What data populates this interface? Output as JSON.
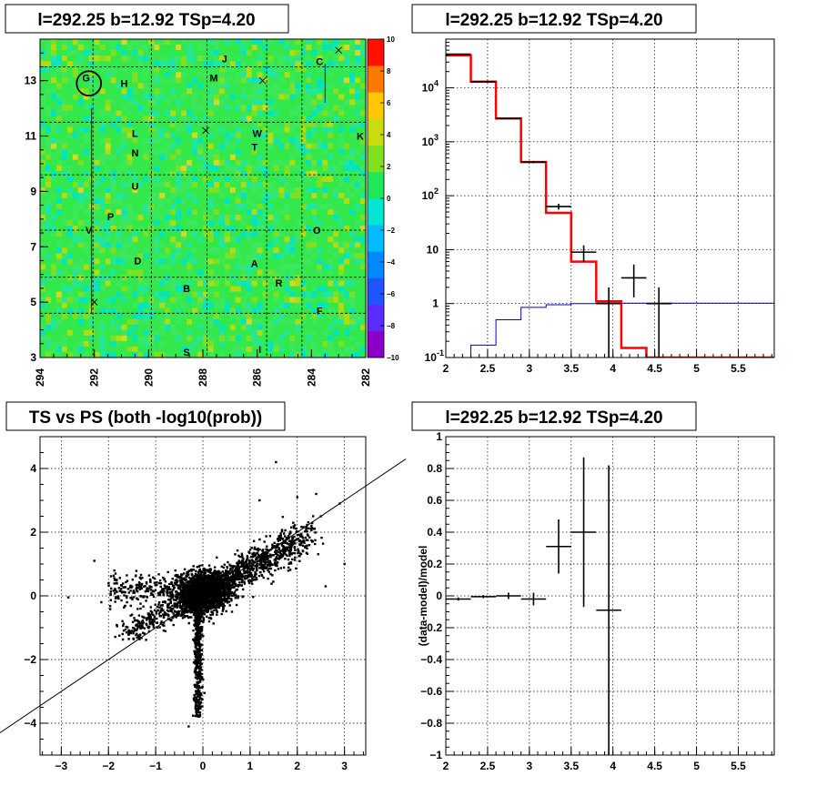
{
  "colors": {
    "map_base": "#33e84a",
    "model_line": "#ff0000",
    "background_line": "#0000cc",
    "data_marks": "#000000",
    "palette": [
      "#8a00c8",
      "#5a2cff",
      "#1f55ff",
      "#0088ff",
      "#00bcff",
      "#00e6d2",
      "#1ee85a",
      "#7fe020",
      "#c8dc10",
      "#ffc800",
      "#ff7800",
      "#ff1000"
    ]
  },
  "chart_data": [
    {
      "type": "heatmap",
      "title": "l=292.25 b=12.92 TSp=4.20",
      "xlim": [
        294,
        282
      ],
      "ylim": [
        3,
        14.5
      ],
      "x_ticks": [
        "294",
        "292",
        "290",
        "288",
        "286",
        "284",
        "282"
      ],
      "y_ticks": [
        "3",
        "5",
        "7",
        "9",
        "11",
        "13"
      ],
      "z_range": [
        -10,
        10
      ],
      "z_ticks": [
        "10",
        "8",
        "6",
        "4",
        "2",
        "0",
        "−2",
        "−4",
        "−6",
        "−8",
        "−10"
      ],
      "sources": [
        {
          "label": "J",
          "l": 287.2,
          "b": 13.8
        },
        {
          "label": "C",
          "l": 283.7,
          "b": 13.7
        },
        {
          "label": "H",
          "l": 290.9,
          "b": 12.9
        },
        {
          "label": "M",
          "l": 287.6,
          "b": 13.1
        },
        {
          "label": "G",
          "l": 292.3,
          "b": 13.1
        },
        {
          "label": "L",
          "l": 290.5,
          "b": 11.1
        },
        {
          "label": "W",
          "l": 286.0,
          "b": 11.1
        },
        {
          "label": "K",
          "l": 282.2,
          "b": 11.0
        },
        {
          "label": "N",
          "l": 290.5,
          "b": 10.4
        },
        {
          "label": "T",
          "l": 286.1,
          "b": 10.6
        },
        {
          "label": "U",
          "l": 290.5,
          "b": 9.2
        },
        {
          "label": "P",
          "l": 291.4,
          "b": 8.1
        },
        {
          "label": "V",
          "l": 292.2,
          "b": 7.6
        },
        {
          "label": "O",
          "l": 283.8,
          "b": 7.6
        },
        {
          "label": "D",
          "l": 290.4,
          "b": 6.5
        },
        {
          "label": "A",
          "l": 286.1,
          "b": 6.4
        },
        {
          "label": "R",
          "l": 285.2,
          "b": 5.7
        },
        {
          "label": "B",
          "l": 288.6,
          "b": 5.5
        },
        {
          "label": "F",
          "l": 283.7,
          "b": 4.7
        },
        {
          "label": "S",
          "l": 288.6,
          "b": 3.2
        },
        {
          "label": "I",
          "l": 285.9,
          "b": 3.3
        }
      ],
      "crosses": [
        {
          "l": 283.0,
          "b": 14.1
        },
        {
          "l": 285.8,
          "b": 13.0
        },
        {
          "l": 287.9,
          "b": 11.2
        },
        {
          "l": 292.0,
          "b": 5.0
        }
      ],
      "circle": {
        "l": 292.2,
        "b": 12.9,
        "radius_deg": 0.45
      }
    },
    {
      "type": "line",
      "title": "l=292.25 b=12.92 TSp=4.20",
      "y_scale": "log",
      "xlim": [
        2,
        5.93
      ],
      "ylim": [
        0.1,
        80000
      ],
      "x_ticks": [
        "2",
        "2.5",
        "3",
        "3.5",
        "4",
        "4.5",
        "5",
        "5.5"
      ],
      "y_ticks": [
        "10^-1",
        "1",
        "10",
        "10^2",
        "10^3",
        "10^4"
      ],
      "bin_edges": [
        2.0,
        2.3,
        2.6,
        2.9,
        3.2,
        3.5,
        3.8,
        4.1,
        4.4,
        4.7,
        5.93
      ],
      "series": [
        {
          "values": [
            40000,
            13000,
            2700,
            420,
            48,
            6,
            1.1,
            0.15,
            0.1,
            0.1
          ]
        },
        {
          "values": [
            0.1,
            0.17,
            0.5,
            0.85,
            0.95,
            1.0,
            1.02,
            1.02,
            1.02,
            1.02
          ]
        }
      ],
      "data_points": [
        {
          "x": 2.15,
          "y": 42000,
          "yerr_low": 200,
          "yerr_high": 200,
          "xerr": 0.15
        },
        {
          "x": 2.45,
          "y": 13000,
          "yerr_low": 120,
          "yerr_high": 120,
          "xerr": 0.15
        },
        {
          "x": 2.75,
          "y": 2700,
          "yerr_low": 50,
          "yerr_high": 50,
          "xerr": 0.15
        },
        {
          "x": 3.05,
          "y": 420,
          "yerr_low": 20,
          "yerr_high": 20,
          "xerr": 0.15
        },
        {
          "x": 3.35,
          "y": 63,
          "yerr_low": 8,
          "yerr_high": 8,
          "xerr": 0.15
        },
        {
          "x": 3.65,
          "y": 9,
          "yerr_low": 3,
          "yerr_high": 3,
          "xerr": 0.15
        },
        {
          "x": 3.95,
          "y": 1,
          "yerr_low": 0.9,
          "yerr_high": 1.0,
          "xerr": 0.15
        },
        {
          "x": 4.25,
          "y": 3,
          "yerr_low": 1.7,
          "yerr_high": 2.3,
          "xerr": 0.15
        },
        {
          "x": 4.55,
          "y": 1,
          "yerr_low": 0.9,
          "yerr_high": 1.0,
          "xerr": 0.15
        }
      ]
    },
    {
      "type": "scatter",
      "title": "TS vs PS (both -log10(prob))",
      "xlim": [
        -3.45,
        3.45
      ],
      "ylim": [
        -5,
        5
      ],
      "x_ticks": [
        "−3",
        "−2",
        "−1",
        "0",
        "1",
        "2",
        "3"
      ],
      "y_ticks": [
        "−4",
        "−2",
        "0",
        "2",
        "4"
      ],
      "reference_line": {
        "slope": 1,
        "intercept": 0
      },
      "outliers": [
        {
          "x": -2.85,
          "y": -0.05
        },
        {
          "x": -2.3,
          "y": 1.1
        },
        {
          "x": -2.15,
          "y": -0.2
        },
        {
          "x": 1.55,
          "y": 4.2
        },
        {
          "x": 2.9,
          "y": 2.9
        },
        {
          "x": 3.0,
          "y": 1.0
        },
        {
          "x": 2.5,
          "y": 2.5
        },
        {
          "x": 2.3,
          "y": 2.2
        },
        {
          "x": -1.7,
          "y": -1.2
        },
        {
          "x": 1.2,
          "y": 3.0
        },
        {
          "x": 2.0,
          "y": 3.1
        },
        {
          "x": 2.4,
          "y": 3.2
        },
        {
          "x": -0.3,
          "y": -4.1
        },
        {
          "x": -1.85,
          "y": 0.7
        },
        {
          "x": 2.6,
          "y": 0.3
        }
      ]
    },
    {
      "type": "scatter",
      "title": "l=292.25 b=12.92 TSp=4.20",
      "ylabel": "(data-model)/model",
      "xlim": [
        2,
        5.93
      ],
      "ylim": [
        -1,
        1
      ],
      "x_ticks": [
        "2",
        "2.5",
        "3",
        "3.5",
        "4",
        "4.5",
        "5",
        "5.5"
      ],
      "y_ticks": [
        "−1",
        "−0.8",
        "−0.6",
        "−0.4",
        "−0.2",
        "0",
        "0.2",
        "0.4",
        "0.6",
        "0.8",
        "1"
      ],
      "points": [
        {
          "x": 2.15,
          "y": -0.02,
          "yerr": 0.01,
          "xerr": 0.15
        },
        {
          "x": 2.45,
          "y": -0.005,
          "yerr": 0.01,
          "xerr": 0.15
        },
        {
          "x": 2.75,
          "y": 0.0,
          "yerr": 0.02,
          "xerr": 0.15
        },
        {
          "x": 3.05,
          "y": -0.02,
          "yerr": 0.04,
          "xerr": 0.15
        },
        {
          "x": 3.35,
          "y": 0.31,
          "yerr": 0.17,
          "xerr": 0.15
        },
        {
          "x": 3.65,
          "y": 0.4,
          "yerr": 0.47,
          "xerr": 0.15
        },
        {
          "x": 3.95,
          "y": -0.09,
          "yerr": 0.91,
          "xerr": 0.15
        }
      ]
    }
  ]
}
